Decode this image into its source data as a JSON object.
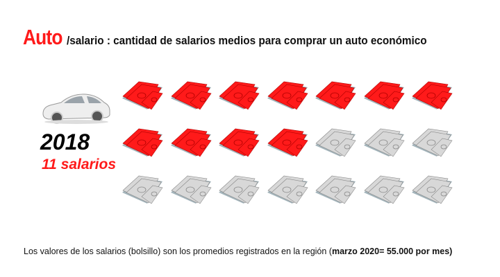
{
  "title": {
    "highlight": "Auto",
    "rest": "/salario : cantidad de salarios medios para comprar un auto económico"
  },
  "year": "2018",
  "salaries_label": "11 salarios",
  "pictogram": {
    "total_icons": 21,
    "filled_icons": 11,
    "filled_color": "#ff1a1a",
    "empty_color": "#d8d8d8",
    "icon": "banknote-stack-icon"
  },
  "footnote": {
    "text": "Los valores de los salarios (bolsillo) son los promedios registrados en la región (",
    "bold": "marzo 2020= 55.000 por mes)"
  },
  "colors": {
    "accent": "#ff1a1a",
    "text": "#111111"
  }
}
